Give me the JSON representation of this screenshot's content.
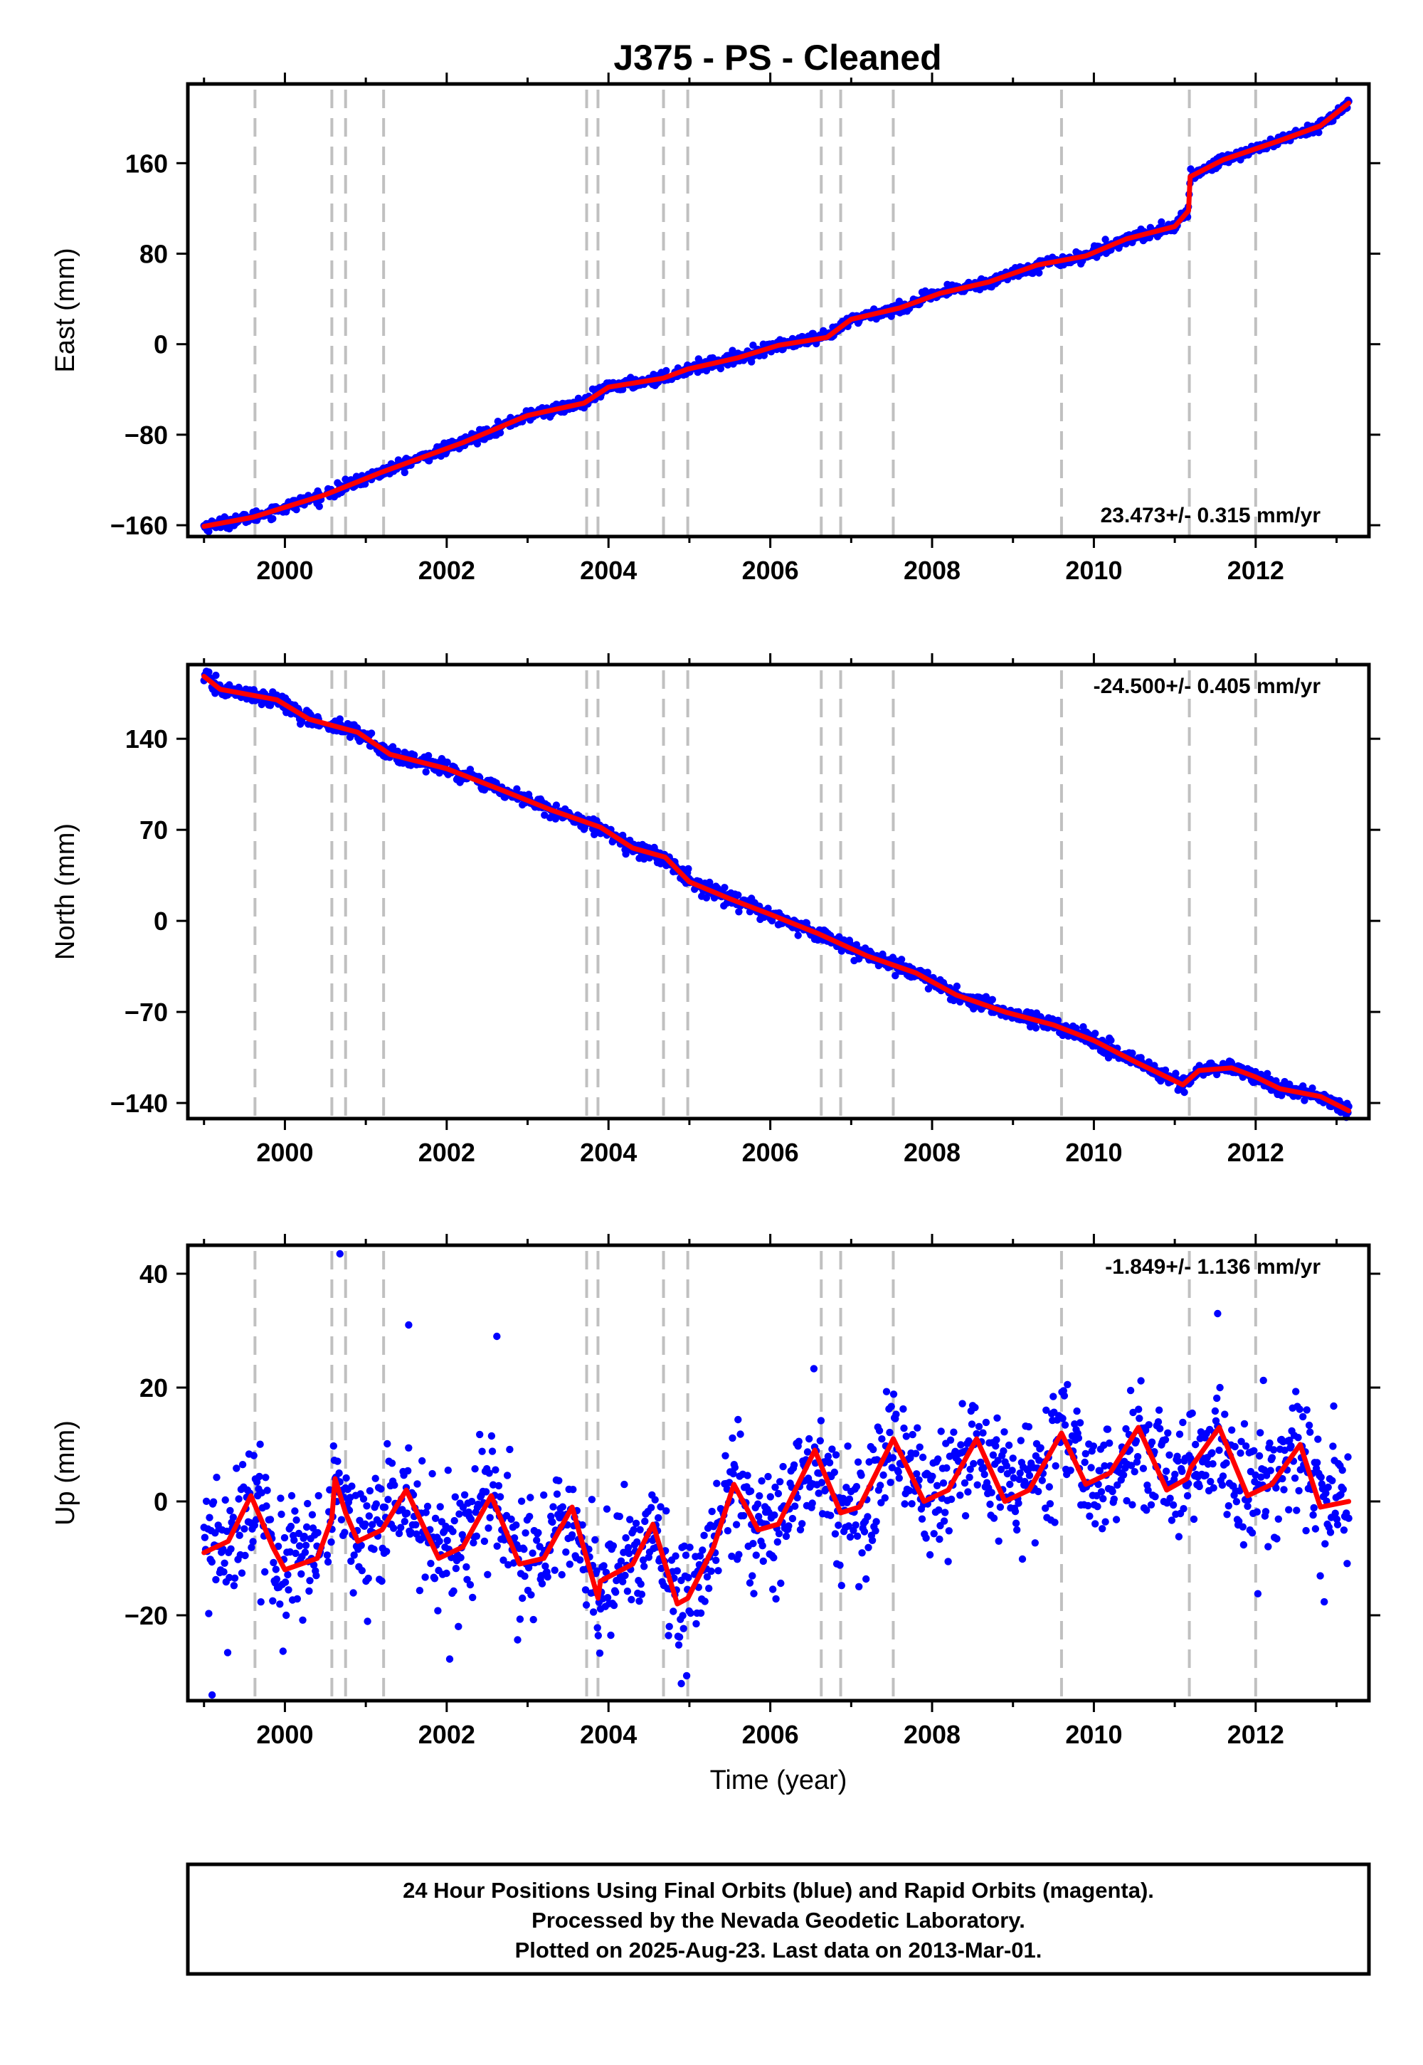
{
  "title": "J375  - PS - Cleaned",
  "footer_lines": [
    "24 Hour Positions Using Final Orbits (blue) and Rapid Orbits (magenta).",
    "Processed by the Nevada Geodetic Laboratory.",
    "Plotted on 2025-Aug-23. Last data on 2013-Mar-01."
  ],
  "colors": {
    "points": "#0000ff",
    "model": "#ff0000",
    "step_lines": "#c0c0c0",
    "frame": "#000000"
  },
  "chart_data": [
    {
      "type": "scatter",
      "component": "East",
      "ylabel": "East (mm)",
      "xlabel": "",
      "rate_text": "23.473+/- 0.315 mm/yr",
      "rate_position": "bottom-right",
      "xlim": [
        1998.8,
        2013.4
      ],
      "ylim": [
        -170,
        230
      ],
      "xticks": [
        2000,
        2002,
        2004,
        2006,
        2008,
        2010,
        2012
      ],
      "yticks": [
        -160,
        -80,
        0,
        80,
        160
      ],
      "step_epochs": [
        1999.63,
        2000.58,
        2000.75,
        2001.22,
        2003.73,
        2003.87,
        2004.68,
        2004.98,
        2006.63,
        2006.87,
        2007.52,
        2009.6,
        2011.18,
        2012.0
      ],
      "model_knots": [
        [
          1999.0,
          -161
        ],
        [
          1999.6,
          -153
        ],
        [
          2000.5,
          -133
        ],
        [
          2001.2,
          -113
        ],
        [
          2002.2,
          -87
        ],
        [
          2003.0,
          -63
        ],
        [
          2003.7,
          -52
        ],
        [
          2004.0,
          -38
        ],
        [
          2004.68,
          -30
        ],
        [
          2004.98,
          -22
        ],
        [
          2005.6,
          -12
        ],
        [
          2006.1,
          -1
        ],
        [
          2006.7,
          6
        ],
        [
          2007.0,
          22
        ],
        [
          2007.6,
          32
        ],
        [
          2008.1,
          45
        ],
        [
          2008.7,
          55
        ],
        [
          2009.3,
          70
        ],
        [
          2009.9,
          78
        ],
        [
          2010.4,
          93
        ],
        [
          2011.0,
          104
        ],
        [
          2011.17,
          118
        ],
        [
          2011.19,
          148
        ],
        [
          2011.6,
          163
        ],
        [
          2012.3,
          180
        ],
        [
          2012.8,
          193
        ],
        [
          2013.15,
          213
        ]
      ],
      "noise_mm": 2.5,
      "outliers": [],
      "n_points": 1450
    },
    {
      "type": "scatter",
      "component": "North",
      "ylabel": "North (mm)",
      "xlabel": "",
      "rate_text": "-24.500+/- 0.405 mm/yr",
      "rate_position": "top-right",
      "xlim": [
        1998.8,
        2013.4
      ],
      "ylim": [
        -152,
        197
      ],
      "xticks": [
        2000,
        2002,
        2004,
        2006,
        2008,
        2010,
        2012
      ],
      "yticks": [
        -140,
        -70,
        0,
        70,
        140
      ],
      "step_epochs": [
        1999.63,
        2000.58,
        2000.75,
        2001.22,
        2003.73,
        2003.87,
        2004.68,
        2004.98,
        2006.63,
        2006.87,
        2007.52,
        2009.6,
        2011.18,
        2012.0
      ],
      "model_knots": [
        [
          1999.0,
          188
        ],
        [
          1999.2,
          178
        ],
        [
          1999.9,
          170
        ],
        [
          2000.3,
          155
        ],
        [
          2000.9,
          145
        ],
        [
          2001.3,
          128
        ],
        [
          2002.0,
          117
        ],
        [
          2002.7,
          100
        ],
        [
          2003.3,
          85
        ],
        [
          2003.9,
          72
        ],
        [
          2004.3,
          56
        ],
        [
          2004.7,
          49
        ],
        [
          2005.0,
          30
        ],
        [
          2005.5,
          17
        ],
        [
          2006.0,
          5
        ],
        [
          2006.6,
          -10
        ],
        [
          2007.2,
          -27
        ],
        [
          2007.8,
          -40
        ],
        [
          2008.3,
          -57
        ],
        [
          2008.9,
          -70
        ],
        [
          2009.5,
          -80
        ],
        [
          2010.0,
          -92
        ],
        [
          2010.5,
          -108
        ],
        [
          2011.1,
          -126
        ],
        [
          2011.3,
          -115
        ],
        [
          2011.7,
          -113
        ],
        [
          2012.0,
          -120
        ],
        [
          2012.3,
          -129
        ],
        [
          2012.8,
          -135
        ],
        [
          2013.15,
          -146
        ]
      ],
      "noise_mm": 2.8,
      "outliers": [],
      "n_points": 1450
    },
    {
      "type": "scatter",
      "component": "Up",
      "ylabel": "Up (mm)",
      "xlabel": "Time (year)",
      "rate_text": "-1.849+/- 1.136 mm/yr",
      "rate_position": "top-right",
      "xlim": [
        1998.8,
        2013.4
      ],
      "ylim": [
        -35,
        45
      ],
      "xticks": [
        2000,
        2002,
        2004,
        2006,
        2008,
        2010,
        2012
      ],
      "yticks": [
        -20,
        0,
        20,
        40
      ],
      "step_epochs": [
        1999.63,
        2000.58,
        2000.75,
        2001.22,
        2003.73,
        2003.87,
        2004.68,
        2004.98,
        2006.63,
        2006.87,
        2007.52,
        2009.6,
        2011.18,
        2012.0
      ],
      "model_knots": [
        [
          1999.0,
          -9
        ],
        [
          1999.3,
          -7
        ],
        [
          1999.58,
          1
        ],
        [
          1999.85,
          -8
        ],
        [
          2000.0,
          -12
        ],
        [
          2000.4,
          -10
        ],
        [
          2000.58,
          -3
        ],
        [
          2000.62,
          4
        ],
        [
          2000.75,
          -2
        ],
        [
          2000.9,
          -7
        ],
        [
          2001.2,
          -5
        ],
        [
          2001.5,
          2
        ],
        [
          2001.9,
          -10
        ],
        [
          2002.2,
          -8
        ],
        [
          2002.55,
          1
        ],
        [
          2002.9,
          -11
        ],
        [
          2003.2,
          -10
        ],
        [
          2003.55,
          -1
        ],
        [
          2003.87,
          -17
        ],
        [
          2003.9,
          -14
        ],
        [
          2004.3,
          -11
        ],
        [
          2004.55,
          -4
        ],
        [
          2004.85,
          -18
        ],
        [
          2004.98,
          -17
        ],
        [
          2005.3,
          -8
        ],
        [
          2005.55,
          3
        ],
        [
          2005.85,
          -5
        ],
        [
          2006.1,
          -4
        ],
        [
          2006.55,
          9
        ],
        [
          2006.87,
          -2
        ],
        [
          2007.1,
          -1
        ],
        [
          2007.52,
          11
        ],
        [
          2007.9,
          0
        ],
        [
          2008.2,
          2
        ],
        [
          2008.55,
          11
        ],
        [
          2008.9,
          0
        ],
        [
          2009.2,
          2
        ],
        [
          2009.6,
          12
        ],
        [
          2009.9,
          3
        ],
        [
          2010.2,
          5
        ],
        [
          2010.55,
          13
        ],
        [
          2010.9,
          2
        ],
        [
          2011.15,
          4
        ],
        [
          2011.2,
          6
        ],
        [
          2011.55,
          13
        ],
        [
          2011.9,
          1
        ],
        [
          2012.2,
          3
        ],
        [
          2012.55,
          10
        ],
        [
          2012.8,
          -1
        ],
        [
          2013.15,
          0
        ]
      ],
      "noise_mm": 5.5,
      "outliers": [
        [
          2000.68,
          43.5
        ],
        [
          1999.1,
          -34
        ],
        [
          2004.9,
          -32
        ],
        [
          2001.53,
          31
        ],
        [
          2002.62,
          29
        ],
        [
          2011.53,
          33
        ]
      ],
      "n_points": 1450
    }
  ]
}
